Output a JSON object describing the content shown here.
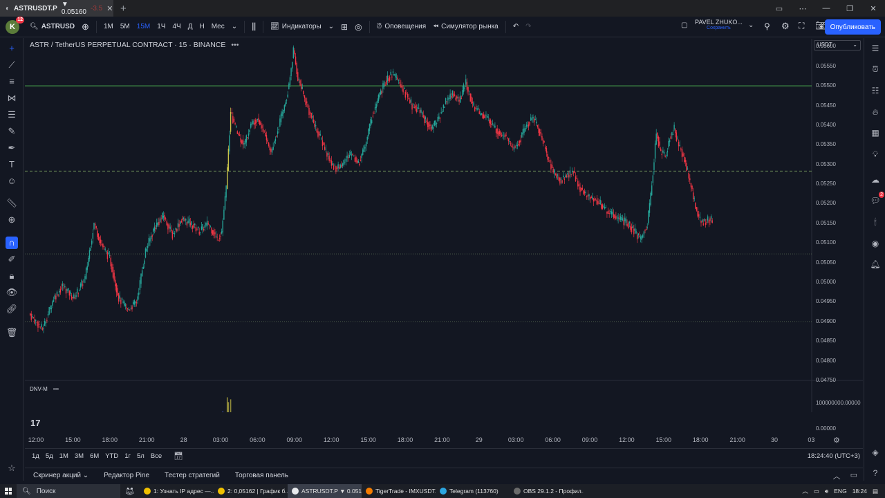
{
  "browser_tab": {
    "title": "ASTRUSDT.P",
    "price": "▼ 0.05160",
    "change": "-3.5"
  },
  "toolbar": {
    "avatar_letter": "K",
    "avatar_badge": "12",
    "symbol": "ASTRUSD",
    "intervals": [
      "1М",
      "5М",
      "15М",
      "1Ч",
      "4Ч",
      "Д",
      "Н",
      "Мес"
    ],
    "active_interval": 2,
    "indicators": "Индикаторы",
    "alerts": "Оповещения",
    "replay": "Симулятор рынка",
    "user_name": "PAVEL ZHUKO...",
    "user_sub": "Сохранить",
    "publish": "Опубликовать"
  },
  "chart": {
    "legend_title": "ASTR / TetherUS PERPETUAL CONTRACT · 15 · BINANCE",
    "currency": "USDT",
    "volume_label": "DNV-M",
    "y_ticks": [
      "0.05600",
      "0.05550",
      "0.05500",
      "0.05450",
      "0.05400",
      "0.05350",
      "0.05300",
      "0.05250",
      "0.05200",
      "0.05150",
      "0.05100",
      "0.05050",
      "0.05000",
      "0.04950",
      "0.04900",
      "0.04850",
      "0.04800",
      "0.04750"
    ],
    "volume_ticks": [
      "100000000.00000",
      "0.00000"
    ],
    "x_ticks": [
      "12:00",
      "15:00",
      "18:00",
      "21:00",
      "28",
      "03:00",
      "06:00",
      "09:00",
      "12:00",
      "15:00",
      "18:00",
      "21:00",
      "29",
      "03:00",
      "06:00",
      "09:00",
      "12:00",
      "15:00",
      "18:00",
      "21:00",
      "30",
      "03"
    ],
    "colors": {
      "up": "#26a69a",
      "down": "#f23645",
      "highlight": "#c9c44a",
      "line_green": "#4caf50"
    }
  },
  "chart_data": {
    "type": "candlestick",
    "title": "ASTR / TetherUS PERPETUAL CONTRACT · 15 · BINANCE",
    "ylim": [
      0.0475,
      0.0562
    ],
    "horizontal_lines": [
      {
        "price": 0.055,
        "style": "solid",
        "color": "#4caf50"
      },
      {
        "price": 0.05283,
        "style": "dashed",
        "color": "#6d8f5a"
      },
      {
        "price": 0.05072,
        "style": "dotted",
        "color": "#4a5a4a"
      },
      {
        "price": 0.049,
        "style": "dotted",
        "color": "#4a5a4a"
      }
    ],
    "close_path": [
      [
        0,
        0.0492
      ],
      [
        12,
        0.0488
      ],
      [
        22,
        0.0496
      ],
      [
        30,
        0.0499
      ],
      [
        40,
        0.0496
      ],
      [
        50,
        0.0501
      ],
      [
        58,
        0.0515
      ],
      [
        64,
        0.051
      ],
      [
        72,
        0.0506
      ],
      [
        80,
        0.0496
      ],
      [
        88,
        0.0493
      ],
      [
        96,
        0.0495
      ],
      [
        104,
        0.0508
      ],
      [
        112,
        0.0514
      ],
      [
        120,
        0.0517
      ],
      [
        128,
        0.0512
      ],
      [
        136,
        0.0516
      ],
      [
        144,
        0.0515
      ],
      [
        152,
        0.0513
      ],
      [
        160,
        0.0515
      ],
      [
        168,
        0.0511
      ],
      [
        172,
        0.0513
      ],
      [
        176,
        0.0524
      ],
      [
        180,
        0.0543
      ],
      [
        186,
        0.0538
      ],
      [
        192,
        0.0535
      ],
      [
        198,
        0.054
      ],
      [
        204,
        0.0542
      ],
      [
        210,
        0.0538
      ],
      [
        216,
        0.0533
      ],
      [
        222,
        0.0539
      ],
      [
        228,
        0.0545
      ],
      [
        232,
        0.055
      ],
      [
        236,
        0.0559
      ],
      [
        240,
        0.0552
      ],
      [
        246,
        0.0547
      ],
      [
        252,
        0.0542
      ],
      [
        258,
        0.0538
      ],
      [
        264,
        0.0534
      ],
      [
        270,
        0.053
      ],
      [
        276,
        0.0529
      ],
      [
        282,
        0.0531
      ],
      [
        288,
        0.0533
      ],
      [
        294,
        0.053
      ],
      [
        300,
        0.0535
      ],
      [
        306,
        0.0542
      ],
      [
        312,
        0.0547
      ],
      [
        318,
        0.0551
      ],
      [
        324,
        0.0553
      ],
      [
        330,
        0.0551
      ],
      [
        336,
        0.0548
      ],
      [
        342,
        0.0545
      ],
      [
        348,
        0.0544
      ],
      [
        354,
        0.0541
      ],
      [
        360,
        0.0539
      ],
      [
        366,
        0.0542
      ],
      [
        372,
        0.0546
      ],
      [
        378,
        0.0548
      ],
      [
        384,
        0.0546
      ],
      [
        390,
        0.0551
      ],
      [
        396,
        0.0545
      ],
      [
        402,
        0.0543
      ],
      [
        408,
        0.0542
      ],
      [
        414,
        0.054
      ],
      [
        420,
        0.0538
      ],
      [
        426,
        0.0537
      ],
      [
        432,
        0.0534
      ],
      [
        438,
        0.0536
      ],
      [
        444,
        0.054
      ],
      [
        450,
        0.0542
      ],
      [
        456,
        0.0538
      ],
      [
        462,
        0.0533
      ],
      [
        468,
        0.0528
      ],
      [
        474,
        0.0526
      ],
      [
        480,
        0.0527
      ],
      [
        486,
        0.0528
      ],
      [
        492,
        0.0524
      ],
      [
        498,
        0.0522
      ],
      [
        504,
        0.0521
      ],
      [
        510,
        0.052
      ],
      [
        516,
        0.0518
      ],
      [
        522,
        0.0517
      ],
      [
        528,
        0.0516
      ],
      [
        534,
        0.0515
      ],
      [
        540,
        0.0513
      ],
      [
        546,
        0.0511
      ],
      [
        552,
        0.0515
      ],
      [
        556,
        0.0525
      ],
      [
        560,
        0.0538
      ],
      [
        564,
        0.0533
      ],
      [
        568,
        0.0532
      ],
      [
        572,
        0.0537
      ],
      [
        576,
        0.0539
      ],
      [
        580,
        0.0535
      ],
      [
        584,
        0.0532
      ],
      [
        588,
        0.0528
      ],
      [
        592,
        0.0523
      ],
      [
        596,
        0.0518
      ],
      [
        600,
        0.0515
      ],
      [
        606,
        0.0516
      ],
      [
        610,
        0.0516
      ]
    ]
  },
  "range_bar": {
    "ranges": [
      "1д",
      "5д",
      "1M",
      "3M",
      "6M",
      "YTD",
      "1г",
      "5л",
      "Все"
    ],
    "clock": "18:24:40 (UTC+3)"
  },
  "bottom_panels": [
    "Скринер акций",
    "Редактор Pine",
    "Тестер стратегий",
    "Торговая панель"
  ],
  "taskbar": {
    "search": "Поиск",
    "tasks": [
      {
        "label": "1: Узнать IP адрес —...",
        "color": "#f0c000",
        "active": false
      },
      {
        "label": "2: 0,05162 | График б...",
        "color": "#f0c000",
        "active": false
      },
      {
        "label": "ASTRUSDT.P ▼ 0.051...",
        "color": "#e8eaed",
        "active": true
      },
      {
        "label": "TigerTrade - IMXUSDT...",
        "color": "#f57c00",
        "active": false
      },
      {
        "label": "Telegram (113760)",
        "color": "#2ca5e0",
        "active": false
      },
      {
        "label": "OBS 29.1.2 - Профил...",
        "color": "#6b6b6b",
        "active": false
      }
    ],
    "lang": "ENG",
    "time": "18:24"
  }
}
